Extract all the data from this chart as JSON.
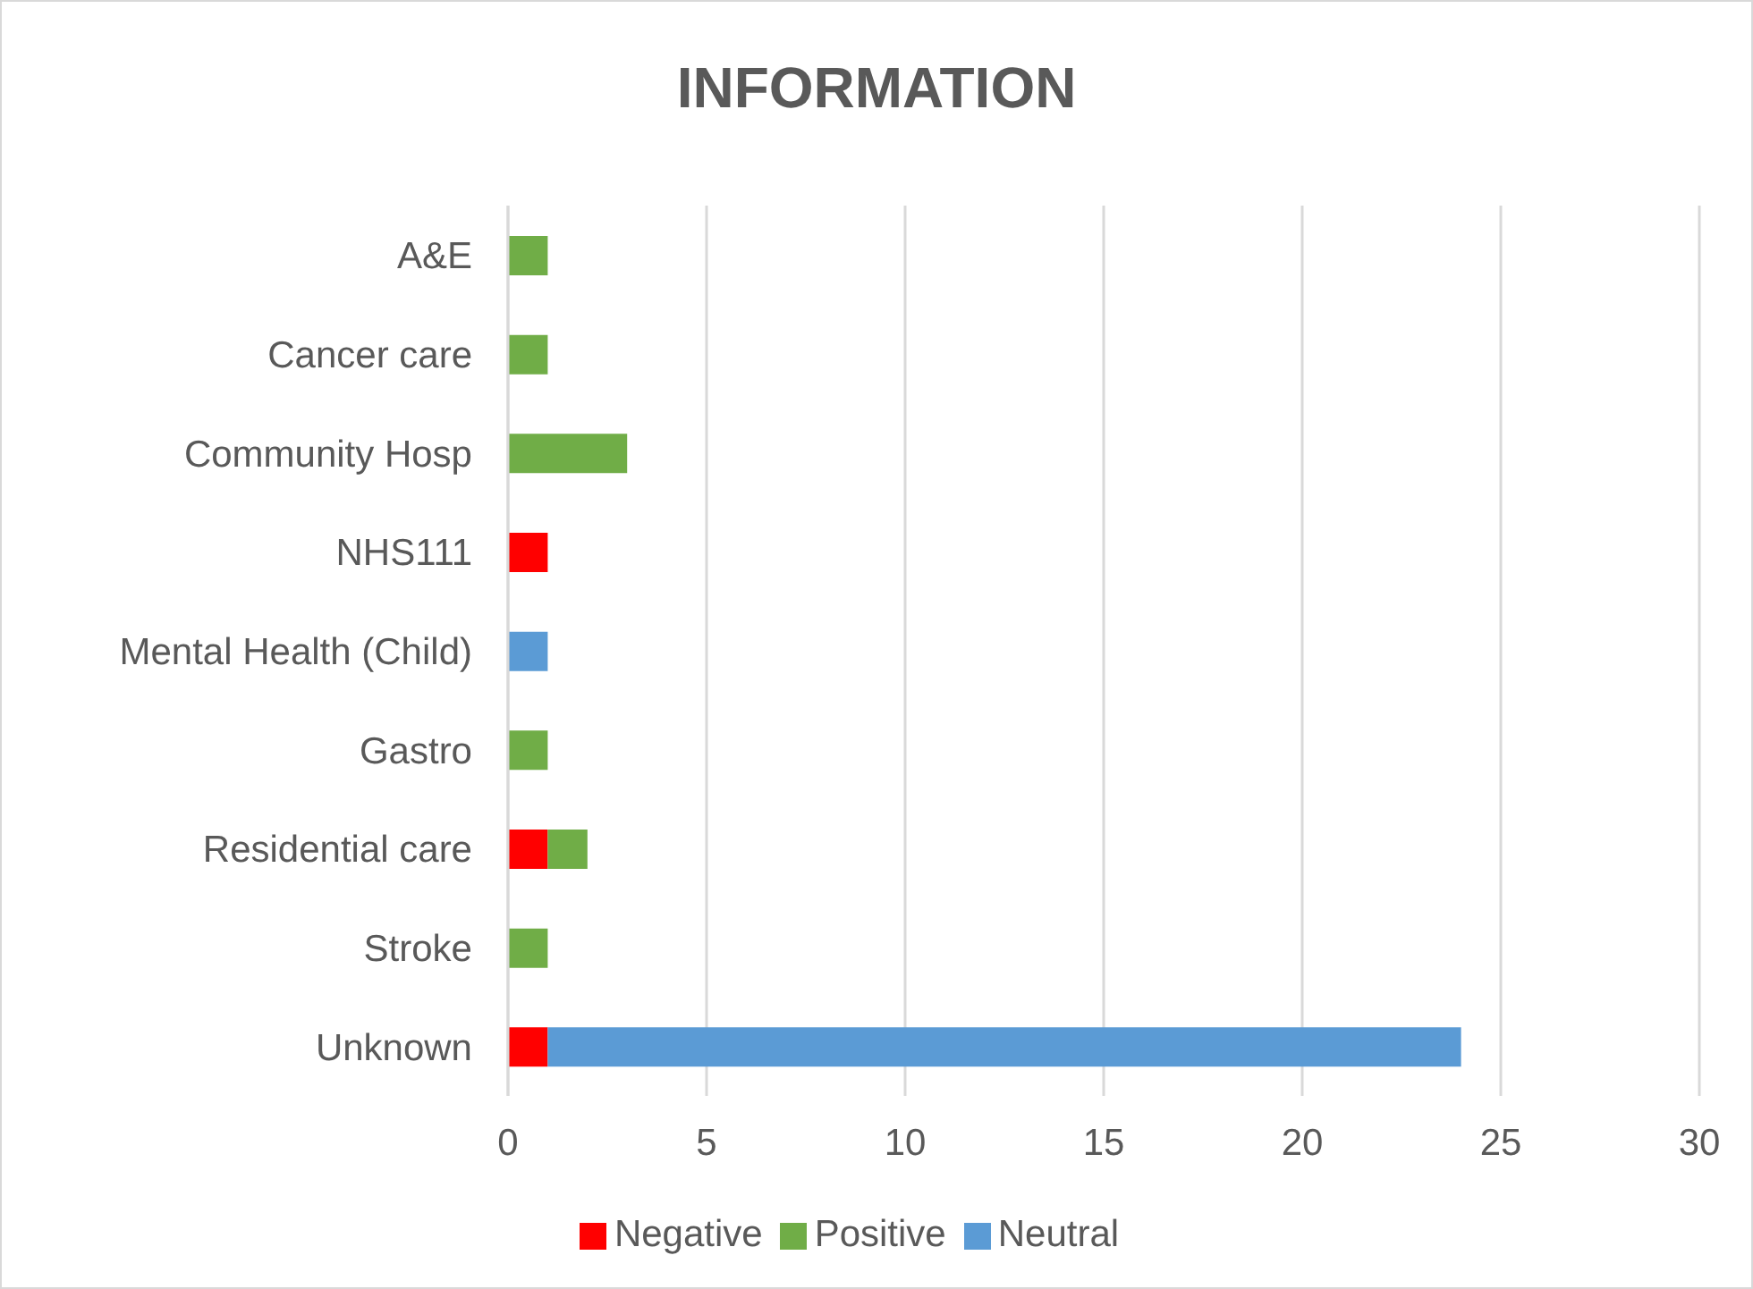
{
  "chart_data": {
    "type": "bar",
    "title": "INFORMATION",
    "orientation": "horizontal",
    "stacked": true,
    "categories": [
      "A&E",
      "Cancer care",
      "Community Hosp",
      "NHS111",
      "Mental Health (Child)",
      "Gastro",
      "Residential care",
      "Stroke",
      "Unknown"
    ],
    "series": [
      {
        "name": "Negative",
        "color": "#ff0000",
        "values": [
          null,
          null,
          null,
          1,
          null,
          null,
          1,
          null,
          1
        ]
      },
      {
        "name": "Positive",
        "color": "#70ad47",
        "values": [
          1,
          1,
          3,
          null,
          null,
          1,
          1,
          1,
          null
        ]
      },
      {
        "name": "Neutral",
        "color": "#5b9bd5",
        "values": [
          null,
          null,
          null,
          null,
          1,
          null,
          null,
          null,
          23
        ]
      }
    ],
    "xlim": [
      0,
      30
    ],
    "xticks": [
      0,
      5,
      10,
      15,
      20,
      25,
      30
    ],
    "grid": "x",
    "legend": "bottom"
  }
}
